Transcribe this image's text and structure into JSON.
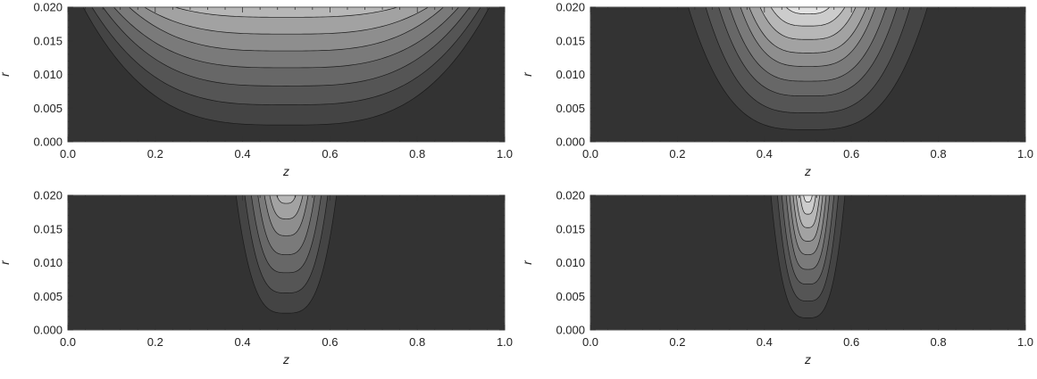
{
  "figure": {
    "colors": {
      "background_level": "#333333",
      "levels": [
        "#444444",
        "#555555",
        "#676767",
        "#7a7a7a",
        "#8e8e8e",
        "#a2a2a2",
        "#b7b7b7",
        "#cccccc",
        "#e2e2e2"
      ],
      "contour_line": "#1a1a1a",
      "frame": "#555555"
    }
  },
  "chart_data": [
    {
      "type": "contour",
      "xlabel": "z",
      "ylabel": "r",
      "xlim": [
        0.0,
        1.0
      ],
      "ylim": [
        0.0,
        0.02
      ],
      "xticks": [
        "0.0",
        "0.2",
        "0.4",
        "0.6",
        "0.8",
        "1.0"
      ],
      "yticks": [
        "0.000",
        "0.005",
        "0.010",
        "0.015",
        "0.020"
      ],
      "center_z": 0.5,
      "contours": [
        {
          "r_min": 0.0025,
          "half_width": 0.465
        },
        {
          "r_min": 0.0055,
          "half_width": 0.445
        },
        {
          "r_min": 0.0083,
          "half_width": 0.42
        },
        {
          "r_min": 0.011,
          "half_width": 0.395
        },
        {
          "r_min": 0.0135,
          "half_width": 0.36
        },
        {
          "r_min": 0.016,
          "half_width": 0.325
        },
        {
          "r_min": 0.0185,
          "half_width": 0.255
        }
      ]
    },
    {
      "type": "contour",
      "xlabel": "z",
      "ylabel": "r",
      "xlim": [
        0.0,
        1.0
      ],
      "ylim": [
        0.0,
        0.02
      ],
      "xticks": [
        "0.0",
        "0.2",
        "0.4",
        "0.6",
        "0.8",
        "1.0"
      ],
      "yticks": [
        "0.000",
        "0.005",
        "0.010",
        "0.015",
        "0.020"
      ],
      "center_z": 0.5,
      "contours": [
        {
          "r_min": 0.0018,
          "half_width": 0.275
        },
        {
          "r_min": 0.0043,
          "half_width": 0.235
        },
        {
          "r_min": 0.0068,
          "half_width": 0.205
        },
        {
          "r_min": 0.009,
          "half_width": 0.18
        },
        {
          "r_min": 0.0112,
          "half_width": 0.155
        },
        {
          "r_min": 0.0132,
          "half_width": 0.135
        },
        {
          "r_min": 0.0152,
          "half_width": 0.11
        },
        {
          "r_min": 0.0172,
          "half_width": 0.085
        },
        {
          "r_min": 0.019,
          "half_width": 0.05
        }
      ]
    },
    {
      "type": "contour",
      "xlabel": "z",
      "ylabel": "r",
      "xlim": [
        0.0,
        1.0
      ],
      "ylim": [
        0.0,
        0.02
      ],
      "xticks": [
        "0.0",
        "0.2",
        "0.4",
        "0.6",
        "0.8",
        "1.0"
      ],
      "yticks": [
        "0.000",
        "0.005",
        "0.010",
        "0.015",
        "0.020"
      ],
      "center_z": 0.5,
      "contours": [
        {
          "r_min": 0.0025,
          "half_width": 0.115
        },
        {
          "r_min": 0.0055,
          "half_width": 0.095
        },
        {
          "r_min": 0.0085,
          "half_width": 0.08
        },
        {
          "r_min": 0.0112,
          "half_width": 0.065
        },
        {
          "r_min": 0.014,
          "half_width": 0.05
        },
        {
          "r_min": 0.0165,
          "half_width": 0.038
        },
        {
          "r_min": 0.0188,
          "half_width": 0.022
        }
      ]
    },
    {
      "type": "contour",
      "xlabel": "z",
      "ylabel": "r",
      "xlim": [
        0.0,
        1.0
      ],
      "ylim": [
        0.0,
        0.02
      ],
      "xticks": [
        "0.0",
        "0.2",
        "0.4",
        "0.6",
        "0.8",
        "1.0"
      ],
      "yticks": [
        "0.000",
        "0.005",
        "0.010",
        "0.015",
        "0.020"
      ],
      "center_z": 0.5,
      "contours": [
        {
          "r_min": 0.0018,
          "half_width": 0.085
        },
        {
          "r_min": 0.0043,
          "half_width": 0.07
        },
        {
          "r_min": 0.0068,
          "half_width": 0.06
        },
        {
          "r_min": 0.009,
          "half_width": 0.05
        },
        {
          "r_min": 0.0112,
          "half_width": 0.042
        },
        {
          "r_min": 0.0132,
          "half_width": 0.034
        },
        {
          "r_min": 0.0152,
          "half_width": 0.027
        },
        {
          "r_min": 0.0172,
          "half_width": 0.018
        },
        {
          "r_min": 0.019,
          "half_width": 0.01
        }
      ]
    }
  ]
}
